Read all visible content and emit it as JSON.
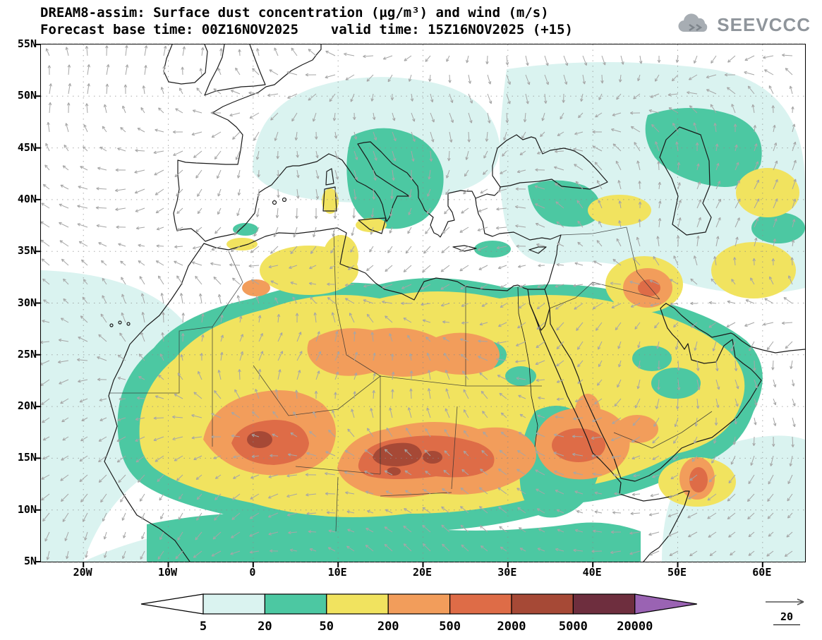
{
  "header": {
    "title_line1": "DREAM8-assim: Surface dust concentration (µg/m³) and wind (m/s)",
    "title_line2": "Forecast base time: 00Z16NOV2025    valid time: 15Z16NOV2025 (+15)",
    "logo_text": "SEEVCCC"
  },
  "chart_data": {
    "type": "heatmap",
    "title": "DREAM8-assim: Surface dust concentration (µg/m³) and wind (m/s)",
    "model": "DREAM8-assim",
    "variable": "Surface dust concentration",
    "units": "µg/m³",
    "wind_units": "m/s",
    "forecast_base_time": "00Z16NOV2025",
    "valid_time": "15Z16NOV2025",
    "forecast_step": "+15",
    "lon_range": [
      -25,
      65
    ],
    "lat_range": [
      5,
      55
    ],
    "lon_ticks": {
      "values": [
        -20,
        -10,
        0,
        10,
        20,
        30,
        40,
        50,
        60
      ],
      "labels": [
        "20W",
        "10W",
        "0",
        "10E",
        "20E",
        "30E",
        "40E",
        "50E",
        "60E"
      ]
    },
    "lat_ticks": {
      "values": [
        55,
        50,
        45,
        40,
        35,
        30,
        25,
        20,
        15,
        10,
        5
      ],
      "labels": [
        "55N",
        "50N",
        "45N",
        "40N",
        "35N",
        "30N",
        "25N",
        "20N",
        "15N",
        "10N",
        "5N"
      ]
    },
    "legend": {
      "levels": [
        "5",
        "20",
        "50",
        "200",
        "500",
        "2000",
        "5000",
        "20000"
      ],
      "colors": [
        "#ffffff",
        "#daf3f0",
        "#4cc8a2",
        "#f1e35f",
        "#f29d5b",
        "#de6c47",
        "#a64936",
        "#6e2e3e",
        "#9a63b3"
      ],
      "wind_reference_label": "20"
    }
  }
}
